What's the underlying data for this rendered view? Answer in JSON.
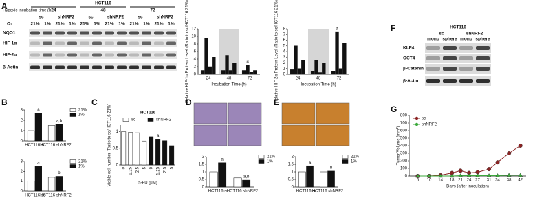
{
  "labels": [
    "A",
    "B",
    "C",
    "D",
    "E",
    "F",
    "G"
  ],
  "blot_A": {
    "cell_line": "HCT116",
    "time_label": "Hypoxic incubation time (h)",
    "times": [
      "24",
      "48",
      "72"
    ],
    "groups": [
      "sc",
      "shNRF2"
    ],
    "o2_label": "O₂",
    "o2": [
      "21%",
      "1%"
    ],
    "rows": [
      "NQO1",
      "HIF-1α",
      "HIF-2α",
      "β-Actin"
    ]
  },
  "blot_F": {
    "cell_line": "HCT116",
    "groups": [
      "sc",
      "shNRF2"
    ],
    "conditions": [
      "mono",
      "sphere"
    ],
    "rows": [
      "KLF4",
      "OCT4",
      "β-Catenin",
      "β-Actin"
    ]
  },
  "chart_data": [
    {
      "type": "bar",
      "ylabel": "Relative HIF-1α Protein Level (Ratio to sc/HCT116 21%)",
      "xlabel": "Incubation Time (h)",
      "categories": [
        "24",
        "48",
        "72"
      ],
      "series": [
        {
          "color": "#111111",
          "values": [
            1,
            1,
            1
          ]
        },
        {
          "color": "#111111",
          "values": [
            9.5,
            5,
            2.5
          ],
          "letters": [
            null,
            null,
            "a"
          ]
        },
        {
          "color": "#111111",
          "values": [
            2,
            1,
            0.5
          ]
        },
        {
          "color": "#111111",
          "values": [
            4.5,
            3,
            1
          ]
        }
      ],
      "ylim": [
        0,
        12
      ],
      "yticks": [
        0,
        2,
        4,
        6,
        8,
        10,
        12
      ]
    },
    {
      "type": "bar",
      "ylabel": "Relative HIF-2α Protein Level (Ratio to sc/HCT116 21%)",
      "xlabel": "Incubation Time (h)",
      "categories": [
        "24",
        "48",
        "72"
      ],
      "series": [
        {
          "color": "#111111",
          "values": [
            0.8,
            0.5,
            0.5
          ]
        },
        {
          "color": "#111111",
          "values": [
            5,
            2.5,
            7.5
          ],
          "letters": [
            null,
            null,
            "a"
          ]
        },
        {
          "color": "#111111",
          "values": [
            1,
            0.3,
            1
          ]
        },
        {
          "color": "#111111",
          "values": [
            2.5,
            2,
            5.5
          ]
        }
      ],
      "ylim": [
        0,
        8
      ],
      "yticks": [
        0,
        1,
        2,
        3,
        4,
        5,
        6,
        7,
        8
      ]
    },
    {
      "type": "bar",
      "categories": [
        "HCT116 sc",
        "HCT116 shNRF2"
      ],
      "series": [
        {
          "name": "21%",
          "color": "#ffffff",
          "values": [
            1,
            1.5
          ]
        },
        {
          "name": "1%",
          "color": "#111111",
          "values": [
            2.7,
            1.6
          ],
          "letters": [
            "a",
            "a,b"
          ]
        }
      ],
      "ylim": [
        0,
        3
      ],
      "yticks": [
        0,
        1,
        2,
        3
      ]
    },
    {
      "type": "bar",
      "categories": [
        "HCT116 sc",
        "HCT116 shNRF2"
      ],
      "series": [
        {
          "name": "21%",
          "color": "#ffffff",
          "values": [
            1,
            1.4
          ]
        },
        {
          "name": "1%",
          "color": "#111111",
          "values": [
            2.5,
            1.5
          ],
          "letters": [
            "a",
            "b"
          ]
        }
      ],
      "ylim": [
        0,
        3
      ],
      "yticks": [
        0,
        1,
        2,
        3
      ]
    },
    {
      "type": "bar",
      "title": "HCT116",
      "ylabel": "Viable cell number (Ratio to sc/HCT116 21%)",
      "xlabel": "5-FU (μM)",
      "categories": [
        "0",
        "1.25",
        "2.5",
        "5",
        "0",
        "1.25",
        "2.5",
        "5"
      ],
      "series": [
        {
          "name": "sc",
          "color": "#ffffff",
          "values": [
            1,
            0.98,
            0.97,
            0.72,
            null,
            null,
            null,
            null
          ]
        },
        {
          "name": "shNRF2",
          "color": "#111111",
          "values": [
            null,
            null,
            null,
            null,
            0.85,
            0.78,
            0.73,
            0.58
          ],
          "letters": [
            null,
            null,
            null,
            null,
            null,
            "a",
            null,
            null
          ]
        }
      ],
      "ylim": [
        0,
        1.2
      ],
      "yticks": [
        0,
        0.5,
        1
      ]
    },
    {
      "type": "bar",
      "categories": [
        "HCT116 sc",
        "HCT116 shNRF2"
      ],
      "series": [
        {
          "name": "21%",
          "color": "#ffffff",
          "values": [
            1,
            0.6
          ]
        },
        {
          "name": "1%",
          "color": "#111111",
          "values": [
            1.6,
            0.45
          ],
          "letters": [
            "a",
            "a,b"
          ]
        }
      ],
      "ylim": [
        0,
        2
      ],
      "yticks": [
        0,
        0.5,
        1,
        1.5,
        2
      ]
    },
    {
      "type": "bar",
      "categories": [
        "HCT116 sc",
        "HCT116 shNRF2"
      ],
      "series": [
        {
          "name": "21%",
          "color": "#ffffff",
          "values": [
            1,
            1
          ]
        },
        {
          "name": "1%",
          "color": "#111111",
          "values": [
            1.4,
            1.05
          ],
          "letters": [
            "a",
            "b"
          ]
        }
      ],
      "ylim": [
        0,
        2
      ],
      "yticks": [
        0,
        0.5,
        1,
        1.5,
        2
      ]
    },
    {
      "type": "line",
      "ylabel": "Tumor Volume (mm³)",
      "xlabel": "Days (after inoculation)",
      "x": [
        6,
        10,
        14,
        18,
        21,
        24,
        27,
        31,
        34,
        38,
        42
      ],
      "series": [
        {
          "name": "sc",
          "color": "#8b2323",
          "marker": "circle",
          "values": [
            0,
            0,
            10,
            40,
            70,
            40,
            50,
            90,
            180,
            300,
            400
          ]
        },
        {
          "name": "shNRF2",
          "color": "#3caa3c",
          "marker": "triangle",
          "values": [
            0,
            0,
            0,
            0,
            5,
            5,
            5,
            5,
            5,
            10,
            10
          ]
        }
      ],
      "xlim": [
        3,
        44
      ],
      "xticks": [
        6,
        10,
        14,
        18,
        21,
        24,
        27,
        31,
        34,
        38,
        42
      ],
      "ylim": [
        0,
        800
      ],
      "yticks": [
        0,
        100,
        200,
        300,
        400,
        500,
        600,
        700,
        800
      ],
      "legend": "top-left"
    }
  ]
}
